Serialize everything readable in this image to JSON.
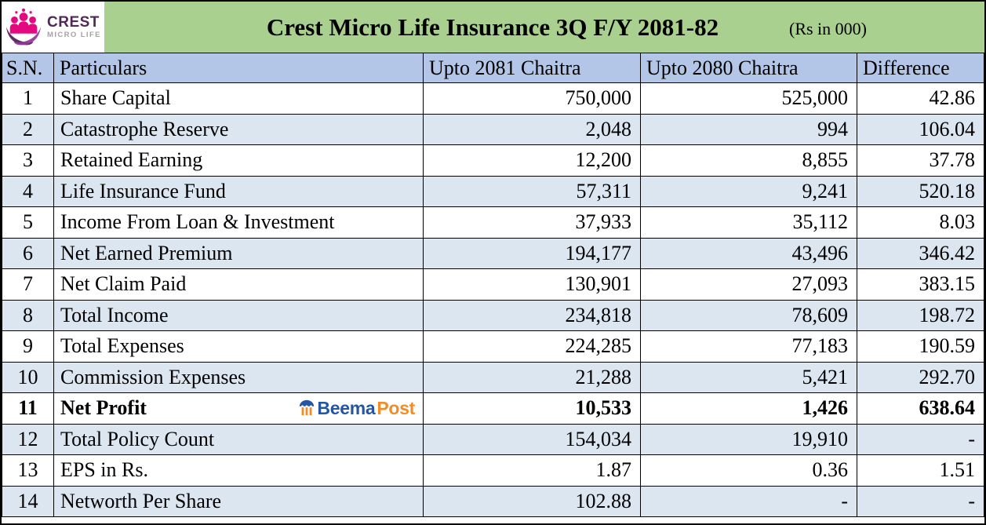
{
  "header": {
    "logo_name": "CREST",
    "logo_subname": "MICRO LIFE",
    "title": "Crest Micro Life Insurance 3Q F/Y 2081-82",
    "unit_note": "(Rs in 000)"
  },
  "watermark": {
    "beema": "Beema",
    "post": "Post"
  },
  "chart_data": {
    "type": "table",
    "title": "Crest Micro Life Insurance 3Q F/Y 2081-82",
    "unit": "Rs in 000",
    "columns": [
      "S.N.",
      "Particulars",
      "Upto 2081 Chaitra",
      "Upto 2080 Chaitra",
      "Difference"
    ],
    "rows": [
      {
        "sn": "1",
        "particulars": "Share Capital",
        "upto_2081_chaitra": "750,000",
        "upto_2080_chaitra": "525,000",
        "difference": "42.86"
      },
      {
        "sn": "2",
        "particulars": "Catastrophe Reserve",
        "upto_2081_chaitra": "2,048",
        "upto_2080_chaitra": "994",
        "difference": "106.04"
      },
      {
        "sn": "3",
        "particulars": "Retained Earning",
        "upto_2081_chaitra": "12,200",
        "upto_2080_chaitra": "8,855",
        "difference": "37.78"
      },
      {
        "sn": "4",
        "particulars": "Life Insurance Fund",
        "upto_2081_chaitra": "57,311",
        "upto_2080_chaitra": "9,241",
        "difference": "520.18"
      },
      {
        "sn": "5",
        "particulars": "Income From Loan & Investment",
        "upto_2081_chaitra": "37,933",
        "upto_2080_chaitra": "35,112",
        "difference": "8.03"
      },
      {
        "sn": "6",
        "particulars": "Net Earned Premium",
        "upto_2081_chaitra": "194,177",
        "upto_2080_chaitra": "43,496",
        "difference": "346.42"
      },
      {
        "sn": "7",
        "particulars": "Net Claim Paid",
        "upto_2081_chaitra": "130,901",
        "upto_2080_chaitra": "27,093",
        "difference": "383.15"
      },
      {
        "sn": "8",
        "particulars": "Total Income",
        "upto_2081_chaitra": "234,818",
        "upto_2080_chaitra": "78,609",
        "difference": "198.72"
      },
      {
        "sn": "9",
        "particulars": "Total Expenses",
        "upto_2081_chaitra": "224,285",
        "upto_2080_chaitra": "77,183",
        "difference": "190.59"
      },
      {
        "sn": "10",
        "particulars": "Commission Expenses",
        "upto_2081_chaitra": "21,288",
        "upto_2080_chaitra": "5,421",
        "difference": "292.70"
      },
      {
        "sn": "11",
        "particulars": "Net Profit",
        "upto_2081_chaitra": "10,533",
        "upto_2080_chaitra": "1,426",
        "difference": "638.64",
        "emphasis": true,
        "watermark": true
      },
      {
        "sn": "12",
        "particulars": "Total Policy Count",
        "upto_2081_chaitra": "154,034",
        "upto_2080_chaitra": "19,910",
        "difference": "-"
      },
      {
        "sn": "13",
        "particulars": "EPS in Rs.",
        "upto_2081_chaitra": "1.87",
        "upto_2080_chaitra": "0.36",
        "difference": "1.51"
      },
      {
        "sn": "14",
        "particulars": "Networth Per Share",
        "upto_2081_chaitra": "102.88",
        "upto_2080_chaitra": "-",
        "difference": "-"
      }
    ]
  },
  "colors": {
    "title_bg": "#a9d08e",
    "header_bg": "#b4c6e7",
    "row_alt_bg": "#dce6f1",
    "beema_blue": "#2456a4",
    "post_orange": "#f28c28",
    "crest_purple": "#52275a"
  }
}
